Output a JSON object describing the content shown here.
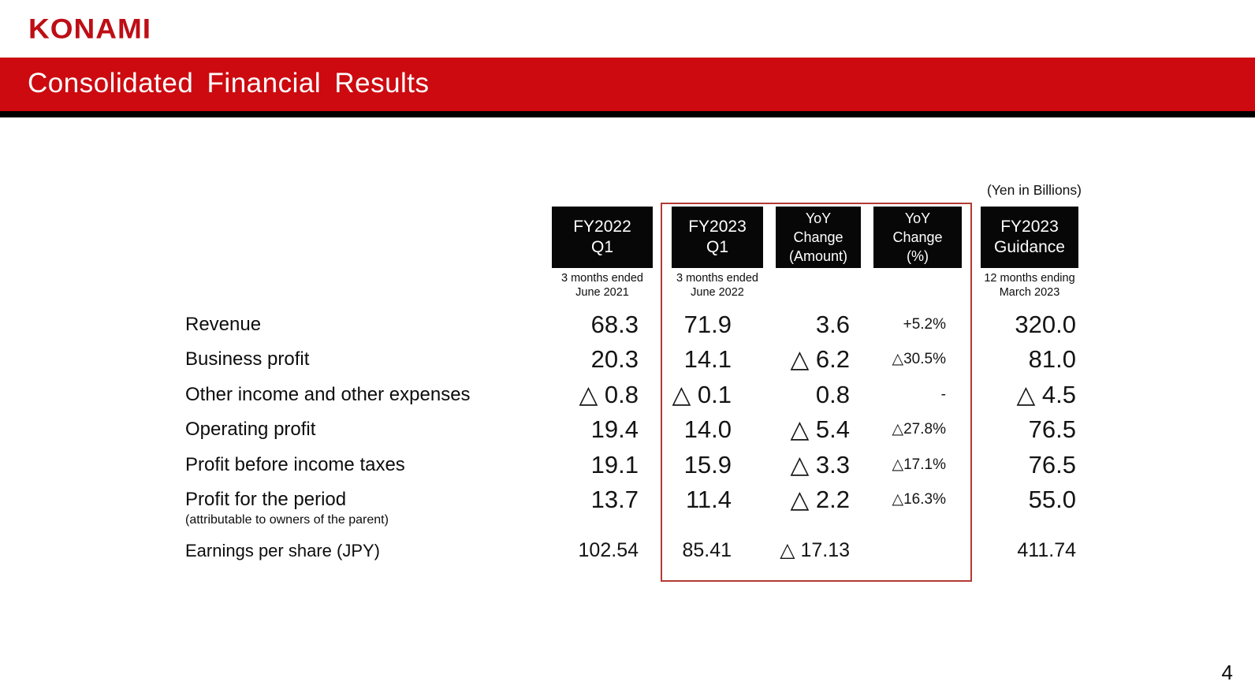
{
  "brand": {
    "logo_text": "KONAMI"
  },
  "header": {
    "title": "Consolidated Financial Results"
  },
  "page_number": "4",
  "table": {
    "units_note": "(Yen in Billions)",
    "columns": [
      {
        "id": "fy2022-q1",
        "label": "FY2022\nQ1",
        "sublabel": "3 months ended\nJune 2021",
        "highlighted": false
      },
      {
        "id": "fy2023-q1",
        "label": "FY2023\nQ1",
        "sublabel": "3 months ended\nJune 2022",
        "highlighted": true
      },
      {
        "id": "yoy-change-amount",
        "label": "YoY\nChange\n(Amount)",
        "sublabel": "",
        "highlighted": true
      },
      {
        "id": "yoy-change-percent",
        "label": "YoY\nChange\n(%)",
        "sublabel": "",
        "highlighted": true
      },
      {
        "id": "fy2023-guidance",
        "label": "FY2023\nGuidance",
        "sublabel": "12 months ending\nMarch 2023",
        "highlighted": false
      }
    ],
    "rows": [
      {
        "label": "Revenue",
        "sublabel": "",
        "values": [
          "68.3",
          "71.9",
          "3.6",
          "+5.2%",
          "320.0"
        ],
        "size": "large"
      },
      {
        "label": "Business profit",
        "sublabel": "",
        "values": [
          "20.3",
          "14.1",
          "△ 6.2",
          "△30.5%",
          "81.0"
        ],
        "size": "large"
      },
      {
        "label": "Other income and other expenses",
        "sublabel": "",
        "values": [
          "△ 0.8",
          "△ 0.1",
          "0.8",
          "-",
          "△ 4.5"
        ],
        "size": "large"
      },
      {
        "label": "Operating profit",
        "sublabel": "",
        "values": [
          "19.4",
          "14.0",
          "△ 5.4",
          "△27.8%",
          "76.5"
        ],
        "size": "large"
      },
      {
        "label": "Profit before income taxes",
        "sublabel": "",
        "values": [
          "19.1",
          "15.9",
          "△ 3.3",
          "△17.1%",
          "76.5"
        ],
        "size": "large"
      },
      {
        "label": "Profit for the period",
        "sublabel": "(attributable to owners of the parent)",
        "values": [
          "13.7",
          "11.4",
          "△ 2.2",
          "△16.3%",
          "55.0"
        ],
        "size": "large"
      },
      {
        "label": "Earnings per share (JPY)",
        "sublabel": "",
        "values": [
          "102.54",
          "85.41",
          "△ 17.13",
          "",
          "411.74"
        ],
        "size": "small"
      }
    ]
  },
  "colors": {
    "banner_red": "#CC0A10",
    "logo_red": "#BE0E15",
    "highlight_outline_red": "#B23B35",
    "header_box_black": "#070707"
  }
}
